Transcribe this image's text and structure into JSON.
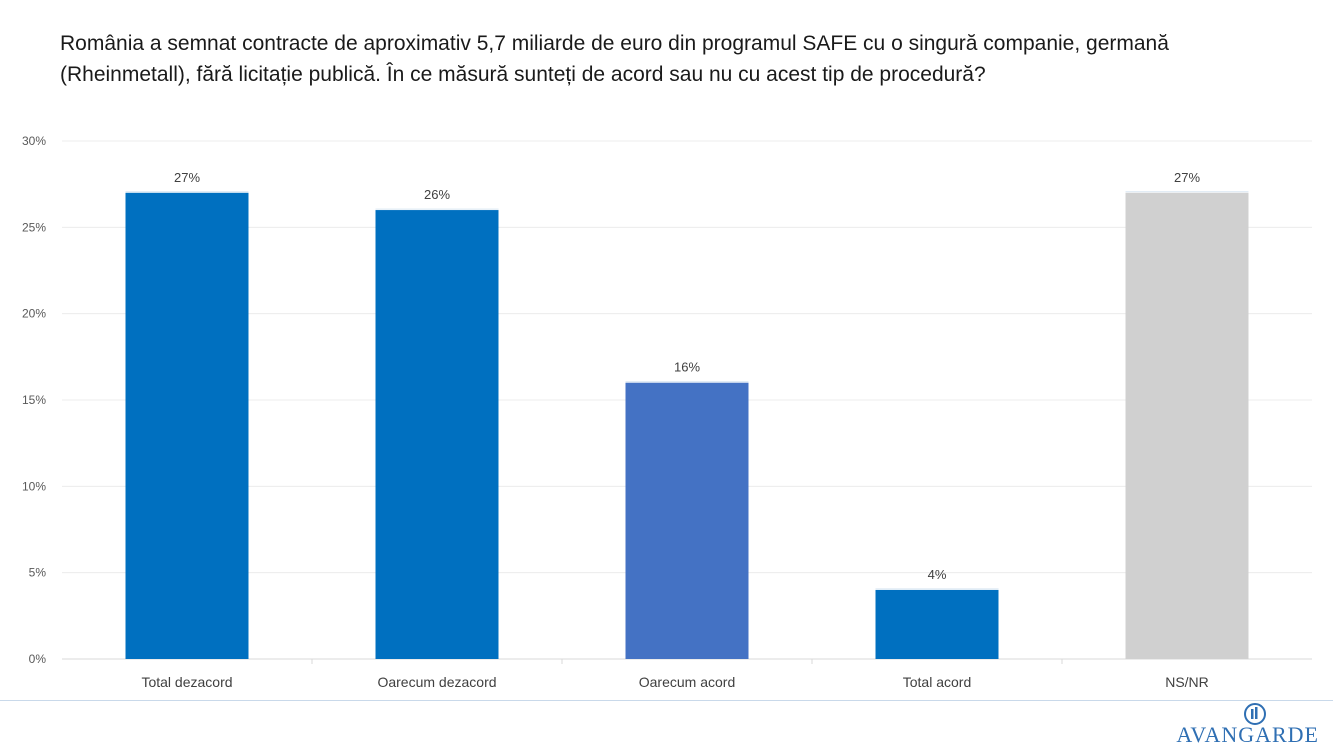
{
  "title": "România a semnat contracte de aproximativ 5,7 miliarde de euro din programul SAFE cu o singură companie, germană (Rheinmetall), fără licitație publică. În ce măsură sunteți de acord sau nu cu acest tip de procedură?",
  "chart_data": {
    "type": "bar",
    "title": "România a semnat contracte de aproximativ 5,7 miliarde de euro din programul SAFE cu o singură companie, germană (Rheinmetall), fără licitație publică. În ce măsură sunteți de acord sau nu cu acest tip de procedură?",
    "categories": [
      "Total dezacord",
      "Oarecum dezacord",
      "Oarecum acord",
      "Total acord",
      "NS/NR"
    ],
    "values": [
      27,
      26,
      16,
      4,
      27
    ],
    "data_labels": [
      "27%",
      "26%",
      "16%",
      "4%",
      "27%"
    ],
    "bar_colors": [
      "#0070c0",
      "#0070c0",
      "#4472c4",
      "#0070c0",
      "#d0d0d0"
    ],
    "ylim": [
      0,
      30
    ],
    "yticks": [
      0,
      5,
      10,
      15,
      20,
      25,
      30
    ],
    "ytick_labels": [
      "0%",
      "5%",
      "10%",
      "15%",
      "20%",
      "25%",
      "30%"
    ],
    "xlabel": "",
    "ylabel": "",
    "grid": true,
    "legend": "none"
  },
  "branding": {
    "logo_text": "AVANGARDE",
    "logo_icon": "avangarde-logo-icon",
    "logo_color": "#2f6fb3"
  }
}
